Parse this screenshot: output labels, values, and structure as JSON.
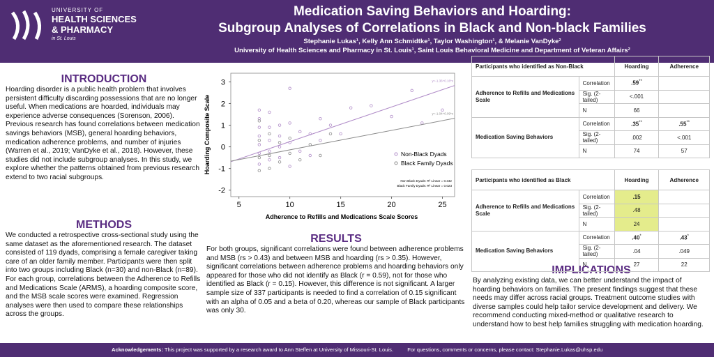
{
  "header": {
    "logo": {
      "line1": "UNIVERSITY OF",
      "line2": "HEALTH SCIENCES",
      "line3": "& PHARMACY",
      "line4": "in St. Louis"
    },
    "title1": "Medication Saving Behaviors and Hoarding:",
    "title2": "Subgroup Analyses of Correlations in Black and Non-black Families",
    "authors": "Stephanie Lukas¹, Kelly Ann Schmidtke¹, Taylor Washington¹, & Melanie VanDyke²",
    "affiliations": "University of Health Sciences and Pharmacy in St. Louis¹, Saint Louis Behavioral Medicine and Department of Veteran Affairs²"
  },
  "introduction": {
    "heading": "INTRODUCTION",
    "text": "Hoarding disorder is a public health problem that involves persistent difficulty discarding possessions that are no longer useful. When medications are hoarded, individuals may experience adverse consequences (Sorenson, 2006). Previous research has found correlations between medication savings behaviors (MSB), general hoarding behaviors, medication adherence problems, and number of injuries (Warren et al., 2019; VanDyke et al., 2018). However, these studies did not include subgroup analyses. In this study, we explore whether the patterns obtained from previous research extend to two racial subgroups."
  },
  "methods": {
    "heading": "METHODS",
    "text": "We conducted a retrospective cross-sectional study using the same dataset as the aforementioned research. The dataset consisted of 119 dyads, comprising a female caregiver taking care of an older family member. Participants were then split into two groups including Black (n=30) and non-Black (n=89). For each group, correlations between the Adherence to Refills and Medications Scale (ARMS), a hoarding composite score, and the MSB scale scores were examined. Regression analyses were then used to compare these relationships across the groups."
  },
  "results": {
    "heading": "RESULTS",
    "text": "For both groups, significant correlations were found between adherence problems and MSB (rs > 0.43) and between MSB and hoarding (rs > 0.35). However, significant correlations between adherence problems and hoarding behaviors only appeared for those who did not identify as Black (r = 0.59), not for those who identified as Black (r = 0.15). However, this difference is not significant. A larger sample size of 337 participants is needed to find a correlation of 0.15 significant with an alpha of 0.05 and a beta of 0.20, whereas our sample of Black participants was only 30."
  },
  "implications": {
    "heading": "IMPLICATIONS",
    "text": "By analyzing existing data, we can better understand the impact of hoarding behaviors on families. The present findings suggest that these needs may differ across racial groups. Treatment outcome studies with diverse samples could help tailor service development and delivery. We recommend conducting mixed-method or qualitative research to understand how to best help families struggling with medication hoarding."
  },
  "chart_data": {
    "type": "scatter",
    "x_label": "Adherence to Refills and Medications Scale Scores",
    "y_label": "Hoarding Composite Scale",
    "xlim": [
      4.2,
      26.2
    ],
    "ylim": [
      -2.3,
      3.4
    ],
    "xticks": [
      5,
      10,
      15,
      20,
      25
    ],
    "yticks": [
      -2,
      -1,
      0,
      1,
      2,
      3
    ],
    "legend": "right",
    "series": [
      {
        "name": "Non-Black Dyads",
        "color": "#b08cc8",
        "x": [
          7,
          7,
          7,
          7,
          7,
          7,
          7,
          8,
          8,
          8,
          8,
          8,
          9,
          9,
          9,
          9,
          10,
          10,
          10,
          10,
          11,
          11,
          12,
          12,
          13,
          13,
          14,
          15,
          16,
          18,
          20,
          22,
          23,
          25
        ],
        "values": [
          1.7,
          1.3,
          0.9,
          0.5,
          0.1,
          -0.3,
          -0.8,
          1.6,
          0.9,
          0.3,
          -0.2,
          -0.6,
          1.0,
          0.5,
          0,
          -0.5,
          2.7,
          1.1,
          0.2,
          -0.9,
          0.7,
          -0.2,
          0.6,
          -0.4,
          1.3,
          0.3,
          1.0,
          0.6,
          1.8,
          1.9,
          1.4,
          2.6,
          1.1,
          1.7
        ],
        "trendline": {
          "intercept": -1.36,
          "slope": 0.16,
          "label": "y=-1.36+0.16*x"
        }
      },
      {
        "name": "Black Family Dyads",
        "color": "#8a8a8a",
        "x": [
          7,
          7,
          7,
          7,
          8,
          8,
          8,
          9,
          9,
          10,
          10,
          11,
          12,
          13,
          14
        ],
        "values": [
          1.2,
          0.3,
          -0.5,
          -1.1,
          0.6,
          -0.4,
          -1.0,
          0.2,
          -0.7,
          0.4,
          -0.3,
          -0.6,
          0.1,
          -0.4,
          0.6
        ],
        "trendline": {
          "intercept": -1.04,
          "slope": 0.09,
          "label": "y=-1.04+0.09*x"
        }
      }
    ],
    "annotations": [
      "Non-Black Dyads: R² Linear = 0.342",
      "Black Family Dyads: R² Linear = 0.023"
    ]
  },
  "table1": {
    "header": [
      "Participants who identified as Non-Black",
      "Hoarding",
      "Adherence"
    ],
    "groups": [
      {
        "label": "Adherence to Refills and Medications  Scale",
        "rows": [
          {
            "stat": "Correlation",
            "hoarding": {
              "text": ".59",
              "sup": "**"
            }
          },
          {
            "stat": "Sig. (2-tailed)",
            "hoarding": {
              "text": "<.001"
            }
          },
          {
            "stat": "N",
            "hoarding": {
              "text": "66"
            }
          }
        ]
      },
      {
        "label": "Medication Saving Behaviors",
        "rows": [
          {
            "stat": "Correlation",
            "hoarding": {
              "text": ".35",
              "sup": "**"
            },
            "adherence": {
              "text": ".55",
              "sup": "**"
            }
          },
          {
            "stat": "Sig. (2-tailed)",
            "hoarding": {
              "text": ".002"
            },
            "adherence": {
              "text": "<.001"
            }
          },
          {
            "stat": "N",
            "hoarding": {
              "text": "74"
            },
            "adherence": {
              "text": "57"
            }
          }
        ]
      }
    ]
  },
  "table2": {
    "header": [
      "Participants who identified as Black",
      "Hoarding",
      "Adherence"
    ],
    "groups": [
      {
        "label": "Adherence to Refills and Medications  Scale",
        "rows": [
          {
            "stat": "Correlation",
            "hoarding": {
              "text": ".15"
            }
          },
          {
            "stat": "Sig. (2-tailed)",
            "hoarding": {
              "text": ".48"
            }
          },
          {
            "stat": "N",
            "hoarding": {
              "text": "24"
            }
          }
        ]
      },
      {
        "label": "Medication Saving Behaviors",
        "rows": [
          {
            "stat": "Correlation",
            "hoarding": {
              "text": ".40",
              "sup": "*"
            },
            "adherence": {
              "text": ".43",
              "sup": "*"
            }
          },
          {
            "stat": "Sig. (2-tailed)",
            "hoarding": {
              "text": ".04"
            },
            "adherence": {
              "text": ".049"
            }
          },
          {
            "stat": "N",
            "hoarding": {
              "text": "27"
            },
            "adherence": {
              "text": "22"
            }
          }
        ]
      }
    ]
  },
  "footer": {
    "ack_label": "Acknowledgements:",
    "ack_text": "This project was supported by a research award to Ann Steffen at University of Missouri-St. Louis.",
    "contact": "For questions, comments or concerns, please contact: Stephanie.Lukas@uhsp.edu"
  }
}
